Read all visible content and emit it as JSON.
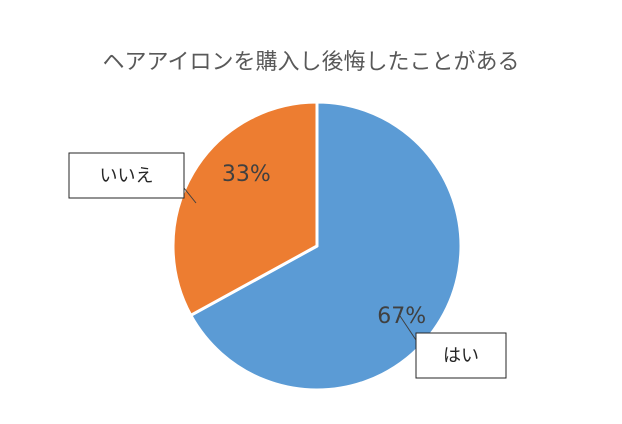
{
  "chart_data": {
    "type": "pie",
    "title": "ヘアアイロンを購入し後悔したことがある",
    "categories": [
      "はい",
      "いいえ"
    ],
    "values": [
      67,
      33
    ],
    "value_labels": [
      "67%",
      "33%"
    ],
    "colors": [
      "#5B9BD5",
      "#ED7D31"
    ],
    "legend": "none"
  }
}
